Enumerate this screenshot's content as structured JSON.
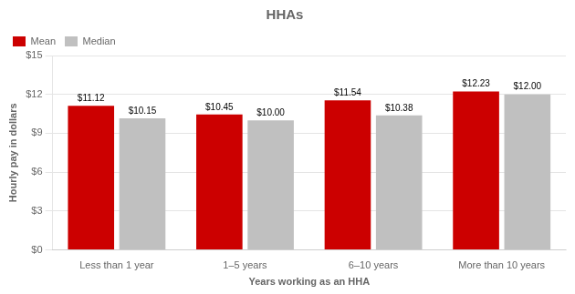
{
  "chart_data": {
    "type": "bar",
    "title": "HHAs",
    "xlabel": "Years working as an HHA",
    "ylabel": "Hourly pay in dollars",
    "categories": [
      "Less than 1 year",
      "1–5 years",
      "6–10 years",
      "More than 10 years"
    ],
    "series": [
      {
        "name": "Mean",
        "color": "#cc0000",
        "values": [
          11.12,
          10.45,
          11.54,
          12.23
        ],
        "value_labels": [
          "$11.12",
          "$10.45",
          "$11.54",
          "$12.23"
        ]
      },
      {
        "name": "Median",
        "color": "#c0c0c0",
        "values": [
          10.15,
          10.0,
          10.38,
          12.0
        ],
        "value_labels": [
          "$10.15",
          "$10.00",
          "$10.38",
          "$12.00"
        ]
      }
    ],
    "ylim": [
      0,
      15
    ],
    "yticks": [
      {
        "value": 0,
        "label": "$0"
      },
      {
        "value": 3,
        "label": "$3"
      },
      {
        "value": 6,
        "label": "$6"
      },
      {
        "value": 9,
        "label": "$9"
      },
      {
        "value": 12,
        "label": "$12"
      },
      {
        "value": 15,
        "label": "$15"
      }
    ],
    "grid": true,
    "legend": "upper left",
    "data_labels": true
  }
}
